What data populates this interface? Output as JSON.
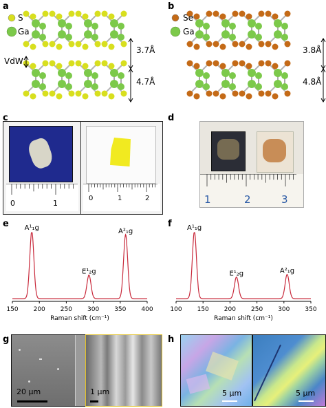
{
  "panels": {
    "a": {
      "letter": "a",
      "legend": [
        "S",
        "Ga"
      ],
      "vdw": "VdW",
      "dims": [
        "3.7Å",
        "4.7Å"
      ]
    },
    "b": {
      "letter": "b",
      "legend": [
        "Se",
        "Ga"
      ],
      "dims": [
        "3.8Å",
        "4.8Å"
      ]
    },
    "c": {
      "letter": "c",
      "ruler_left": [
        "0",
        "1"
      ],
      "ruler_right": [
        "0",
        "1",
        "2"
      ]
    },
    "d": {
      "letter": "d",
      "ruler": [
        "1",
        "2",
        "3"
      ]
    },
    "e": {
      "letter": "e"
    },
    "f": {
      "letter": "f"
    },
    "g": {
      "letter": "g",
      "scale_left": "20 µm",
      "scale_right": "1 µm"
    },
    "h": {
      "letter": "h",
      "scale_left": "5 µm",
      "scale_right": "5 µm"
    }
  },
  "colors": {
    "sulfur": "#d8df1e",
    "gallium": "#7cc94a",
    "selenium": "#c46a17",
    "raman_line": "#c8283a"
  },
  "chart_data": [
    {
      "type": "line",
      "panel": "e",
      "xlabel": "Raman shift (cm⁻¹)",
      "xlim": [
        150,
        400
      ],
      "x_ticks": [
        150,
        200,
        250,
        300,
        350,
        400
      ],
      "peaks": [
        {
          "label": "A¹₁g",
          "x": 186,
          "height": 1.0
        },
        {
          "label": "E¹₂g",
          "x": 292,
          "height": 0.35
        },
        {
          "label": "A²₁g",
          "x": 360,
          "height": 0.95
        }
      ]
    },
    {
      "type": "line",
      "panel": "f",
      "xlabel": "Raman shift (cm⁻¹)",
      "xlim": [
        100,
        350
      ],
      "x_ticks": [
        100,
        150,
        200,
        250,
        300,
        350
      ],
      "peaks": [
        {
          "label": "A¹₁g",
          "x": 134,
          "height": 1.0
        },
        {
          "label": "E¹₂g",
          "x": 212,
          "height": 0.32
        },
        {
          "label": "A²₁g",
          "x": 306,
          "height": 0.36
        }
      ]
    }
  ]
}
